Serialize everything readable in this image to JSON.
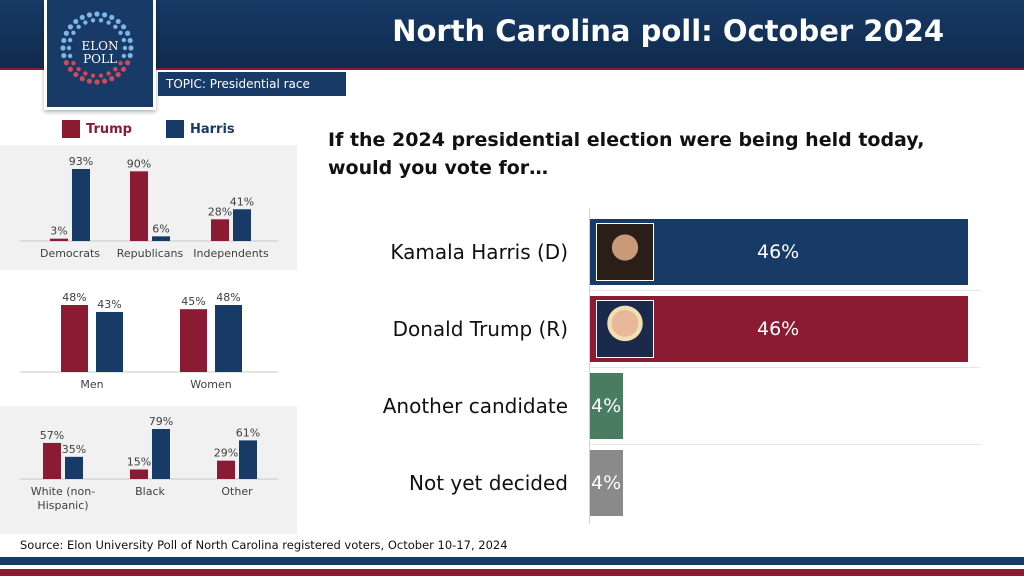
{
  "header": {
    "title": "North Carolina poll: October 2024",
    "logo_line1": "ELON",
    "logo_line2": "POLL",
    "topic": "TOPIC: Presidential race"
  },
  "colors": {
    "trump": "#8b1a33",
    "harris": "#173a66",
    "other": "#4a7c5f",
    "undecided": "#8a8a8a"
  },
  "legend": {
    "trump": "Trump",
    "harris": "Harris"
  },
  "question": "If the 2024 presidential election were being held today, would you vote for…",
  "source": "Source: Elon University Poll of North Carolina registered voters, October 10-17, 2024",
  "chart_data": [
    {
      "type": "bar",
      "orientation": "horizontal",
      "categories": [
        "Kamala Harris (D)",
        "Donald Trump (R)",
        "Another candidate",
        "Not yet decided"
      ],
      "values": [
        46,
        46,
        4,
        4
      ],
      "value_labels": [
        "46%",
        "46%",
        "4%",
        "4%"
      ],
      "colors": [
        "#173a66",
        "#8b1a33",
        "#4a7c5f",
        "#8a8a8a"
      ],
      "title": "If the 2024 presidential election were being held today, would you vote for…",
      "xlim": [
        0,
        46
      ]
    },
    {
      "type": "bar",
      "categories": [
        "Democrats",
        "Republicans",
        "Independents"
      ],
      "series": [
        {
          "name": "Trump",
          "values": [
            3,
            90,
            28
          ],
          "labels": [
            "3%",
            "90%",
            "28%"
          ]
        },
        {
          "name": "Harris",
          "values": [
            93,
            6,
            41
          ],
          "labels": [
            "93%",
            "6%",
            "41%"
          ]
        }
      ],
      "ylim": [
        0,
        93
      ]
    },
    {
      "type": "bar",
      "categories": [
        "Men",
        "Women"
      ],
      "series": [
        {
          "name": "Trump",
          "values": [
            48,
            45
          ],
          "labels": [
            "48%",
            "45%"
          ]
        },
        {
          "name": "Harris",
          "values": [
            43,
            48
          ],
          "labels": [
            "43%",
            "48%"
          ]
        }
      ],
      "ylim": [
        0,
        48
      ]
    },
    {
      "type": "bar",
      "categories": [
        "White (non-Hispanic)",
        "Black",
        "Other"
      ],
      "category_lines": [
        [
          "White (non-",
          "Hispanic)"
        ],
        [
          "Black"
        ],
        [
          "Other"
        ]
      ],
      "series": [
        {
          "name": "Trump",
          "values": [
            57,
            15,
            29
          ],
          "labels": [
            "57%",
            "15%",
            "29%"
          ]
        },
        {
          "name": "Harris",
          "values": [
            35,
            79,
            61
          ],
          "labels": [
            "35%",
            "79%",
            "61%"
          ]
        }
      ],
      "ylim": [
        0,
        79
      ]
    }
  ]
}
